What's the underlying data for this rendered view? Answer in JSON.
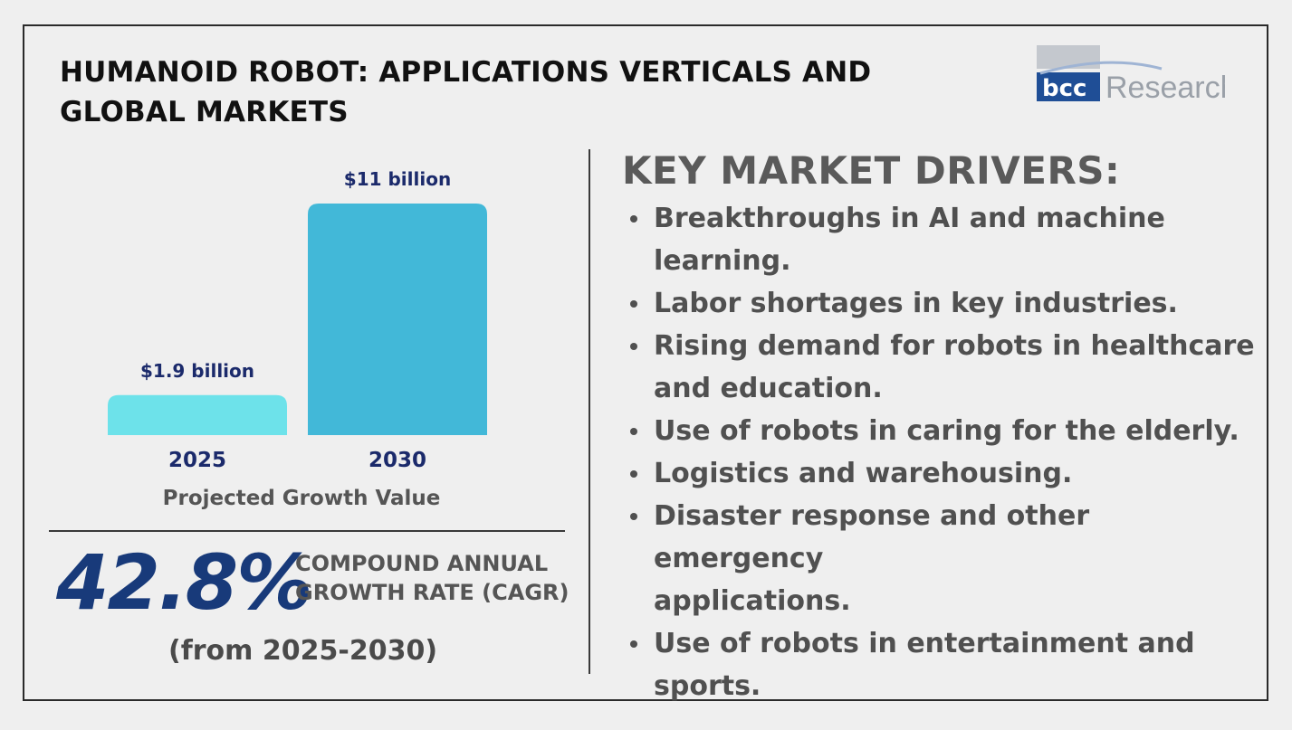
{
  "title": "HUMANOID ROBOT: APPLICATIONS VERTICALS AND GLOBAL MARKETS",
  "logo": {
    "part1": "bcc",
    "part2": "Research"
  },
  "colors": {
    "bar_2025": "#6de2ea",
    "bar_2030": "#42b8d8",
    "value_label": "#1b2a6b",
    "year_label": "#1b2a6b",
    "cagr": "#183a7a",
    "logo_navy": "#1f4e96",
    "logo_grey": "#9aa0a8"
  },
  "chart_data": {
    "type": "bar",
    "categories": [
      "2025",
      "2030"
    ],
    "values": [
      1.9,
      11
    ],
    "value_labels": [
      "$1.9 billion",
      "$11 billion"
    ],
    "xlabel": "Projected Growth Value",
    "ylim": [
      0,
      11
    ]
  },
  "cagr": {
    "value": "42.8%",
    "label_line1": "COMPOUND ANNUAL",
    "label_line2": "GROWTH RATE (CAGR)",
    "period": "(from 2025-2030)"
  },
  "drivers": {
    "title": "KEY MARKET DRIVERS:",
    "items": [
      [
        "Breakthroughs in AI and machine",
        "learning."
      ],
      [
        "Labor shortages in key industries."
      ],
      [
        "Rising demand for robots in healthcare",
        "and education."
      ],
      [
        "Use of robots in caring for the elderly."
      ],
      [
        "Logistics and warehousing."
      ],
      [
        "Disaster response and other emergency",
        "applications."
      ],
      [
        "Use of robots in entertainment and",
        "sports."
      ]
    ]
  }
}
